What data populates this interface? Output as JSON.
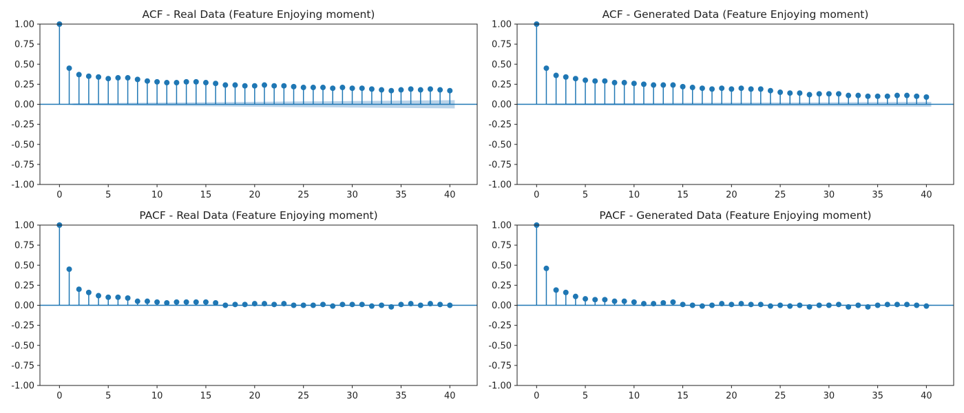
{
  "colors": {
    "stem": "#1f77b4",
    "confidence_band": "#aecbe5",
    "axis": "#222222"
  },
  "chart_data": [
    {
      "type": "stem",
      "title": "ACF - Real Data (Feature Enjoying moment)",
      "xlabel": "",
      "ylabel": "",
      "xlim": [
        -2,
        42.8
      ],
      "ylim": [
        -1.0,
        1.0
      ],
      "xticks": [
        0,
        5,
        10,
        15,
        20,
        25,
        30,
        35,
        40
      ],
      "yticks": [
        -1.0,
        -0.75,
        -0.5,
        -0.25,
        0.0,
        0.25,
        0.5,
        0.75,
        1.0
      ],
      "grid": false,
      "lags": [
        0,
        1,
        2,
        3,
        4,
        5,
        6,
        7,
        8,
        9,
        10,
        11,
        12,
        13,
        14,
        15,
        16,
        17,
        18,
        19,
        20,
        21,
        22,
        23,
        24,
        25,
        26,
        27,
        28,
        29,
        30,
        31,
        32,
        33,
        34,
        35,
        36,
        37,
        38,
        39,
        40
      ],
      "values": [
        1.0,
        0.45,
        0.37,
        0.35,
        0.34,
        0.32,
        0.33,
        0.33,
        0.31,
        0.29,
        0.28,
        0.27,
        0.27,
        0.28,
        0.28,
        0.27,
        0.26,
        0.24,
        0.24,
        0.23,
        0.23,
        0.24,
        0.23,
        0.23,
        0.22,
        0.21,
        0.21,
        0.21,
        0.2,
        0.21,
        0.2,
        0.2,
        0.19,
        0.18,
        0.17,
        0.18,
        0.19,
        0.18,
        0.19,
        0.18,
        0.17
      ],
      "confidence_upper": [
        0,
        0.012,
        0.013,
        0.014,
        0.015,
        0.016,
        0.017,
        0.018,
        0.019,
        0.02,
        0.021,
        0.022,
        0.023,
        0.024,
        0.025,
        0.026,
        0.027,
        0.028,
        0.029,
        0.03,
        0.031,
        0.032,
        0.033,
        0.034,
        0.035,
        0.036,
        0.037,
        0.038,
        0.039,
        0.04,
        0.041,
        0.042,
        0.043,
        0.044,
        0.045,
        0.046,
        0.047,
        0.048,
        0.049,
        0.05,
        0.051
      ]
    },
    {
      "type": "stem",
      "title": "ACF - Generated Data (Feature Enjoying moment)",
      "xlabel": "",
      "ylabel": "",
      "xlim": [
        -2,
        42.8
      ],
      "ylim": [
        -1.0,
        1.0
      ],
      "xticks": [
        0,
        5,
        10,
        15,
        20,
        25,
        30,
        35,
        40
      ],
      "yticks": [
        -1.0,
        -0.75,
        -0.5,
        -0.25,
        0.0,
        0.25,
        0.5,
        0.75,
        1.0
      ],
      "grid": false,
      "lags": [
        0,
        1,
        2,
        3,
        4,
        5,
        6,
        7,
        8,
        9,
        10,
        11,
        12,
        13,
        14,
        15,
        16,
        17,
        18,
        19,
        20,
        21,
        22,
        23,
        24,
        25,
        26,
        27,
        28,
        29,
        30,
        31,
        32,
        33,
        34,
        35,
        36,
        37,
        38,
        39,
        40
      ],
      "values": [
        1.0,
        0.45,
        0.36,
        0.34,
        0.32,
        0.3,
        0.29,
        0.29,
        0.27,
        0.27,
        0.26,
        0.25,
        0.24,
        0.24,
        0.24,
        0.22,
        0.21,
        0.2,
        0.19,
        0.2,
        0.19,
        0.2,
        0.19,
        0.19,
        0.17,
        0.15,
        0.14,
        0.14,
        0.12,
        0.13,
        0.13,
        0.13,
        0.11,
        0.11,
        0.1,
        0.1,
        0.1,
        0.11,
        0.11,
        0.1,
        0.09
      ],
      "confidence_upper": [
        0,
        0.01,
        0.011,
        0.012,
        0.012,
        0.013,
        0.013,
        0.014,
        0.014,
        0.015,
        0.015,
        0.016,
        0.016,
        0.017,
        0.017,
        0.018,
        0.018,
        0.019,
        0.019,
        0.02,
        0.02,
        0.021,
        0.021,
        0.022,
        0.022,
        0.023,
        0.023,
        0.024,
        0.024,
        0.025,
        0.025,
        0.026,
        0.026,
        0.027,
        0.027,
        0.028,
        0.028,
        0.029,
        0.029,
        0.03,
        0.03
      ]
    },
    {
      "type": "stem",
      "title": "PACF - Real Data (Feature Enjoying moment)",
      "xlabel": "",
      "ylabel": "",
      "xlim": [
        -2,
        42.8
      ],
      "ylim": [
        -1.0,
        1.0
      ],
      "xticks": [
        0,
        5,
        10,
        15,
        20,
        25,
        30,
        35,
        40
      ],
      "yticks": [
        -1.0,
        -0.75,
        -0.5,
        -0.25,
        0.0,
        0.25,
        0.5,
        0.75,
        1.0
      ],
      "grid": false,
      "lags": [
        0,
        1,
        2,
        3,
        4,
        5,
        6,
        7,
        8,
        9,
        10,
        11,
        12,
        13,
        14,
        15,
        16,
        17,
        18,
        19,
        20,
        21,
        22,
        23,
        24,
        25,
        26,
        27,
        28,
        29,
        30,
        31,
        32,
        33,
        34,
        35,
        36,
        37,
        38,
        39,
        40
      ],
      "values": [
        1.0,
        0.45,
        0.2,
        0.16,
        0.12,
        0.1,
        0.1,
        0.09,
        0.05,
        0.05,
        0.04,
        0.03,
        0.04,
        0.04,
        0.04,
        0.04,
        0.03,
        0.0,
        0.01,
        0.01,
        0.02,
        0.02,
        0.01,
        0.02,
        0.0,
        0.0,
        0.0,
        0.01,
        -0.01,
        0.01,
        0.01,
        0.01,
        -0.01,
        0.0,
        -0.02,
        0.01,
        0.02,
        0.0,
        0.02,
        0.01,
        0.0
      ],
      "confidence_upper": [
        0,
        0.006,
        0.006,
        0.006,
        0.006,
        0.006,
        0.006,
        0.006,
        0.006,
        0.006,
        0.006,
        0.006,
        0.006,
        0.006,
        0.006,
        0.006,
        0.006,
        0.006,
        0.006,
        0.006,
        0.006,
        0.006,
        0.006,
        0.006,
        0.006,
        0.006,
        0.006,
        0.006,
        0.006,
        0.006,
        0.006,
        0.006,
        0.006,
        0.006,
        0.006,
        0.006,
        0.006,
        0.006,
        0.006,
        0.006,
        0.006
      ]
    },
    {
      "type": "stem",
      "title": "PACF - Generated Data (Feature Enjoying moment)",
      "xlabel": "",
      "ylabel": "",
      "xlim": [
        -2,
        42.8
      ],
      "ylim": [
        -1.0,
        1.0
      ],
      "xticks": [
        0,
        5,
        10,
        15,
        20,
        25,
        30,
        35,
        40
      ],
      "yticks": [
        -1.0,
        -0.75,
        -0.5,
        -0.25,
        0.0,
        0.25,
        0.5,
        0.75,
        1.0
      ],
      "grid": false,
      "lags": [
        0,
        1,
        2,
        3,
        4,
        5,
        6,
        7,
        8,
        9,
        10,
        11,
        12,
        13,
        14,
        15,
        16,
        17,
        18,
        19,
        20,
        21,
        22,
        23,
        24,
        25,
        26,
        27,
        28,
        29,
        30,
        31,
        32,
        33,
        34,
        35,
        36,
        37,
        38,
        39,
        40
      ],
      "values": [
        1.0,
        0.46,
        0.19,
        0.16,
        0.11,
        0.08,
        0.07,
        0.07,
        0.05,
        0.05,
        0.04,
        0.02,
        0.02,
        0.03,
        0.04,
        0.01,
        0.0,
        -0.01,
        0.0,
        0.02,
        0.01,
        0.02,
        0.01,
        0.01,
        -0.01,
        0.0,
        -0.01,
        0.0,
        -0.02,
        0.0,
        0.0,
        0.01,
        -0.02,
        0.0,
        -0.02,
        0.0,
        0.01,
        0.01,
        0.01,
        0.0,
        -0.01
      ],
      "confidence_upper": [
        0,
        0.006,
        0.006,
        0.006,
        0.006,
        0.006,
        0.006,
        0.006,
        0.006,
        0.006,
        0.006,
        0.006,
        0.006,
        0.006,
        0.006,
        0.006,
        0.006,
        0.006,
        0.006,
        0.006,
        0.006,
        0.006,
        0.006,
        0.006,
        0.006,
        0.006,
        0.006,
        0.006,
        0.006,
        0.006,
        0.006,
        0.006,
        0.006,
        0.006,
        0.006,
        0.006,
        0.006,
        0.006,
        0.006,
        0.006,
        0.006
      ]
    }
  ]
}
